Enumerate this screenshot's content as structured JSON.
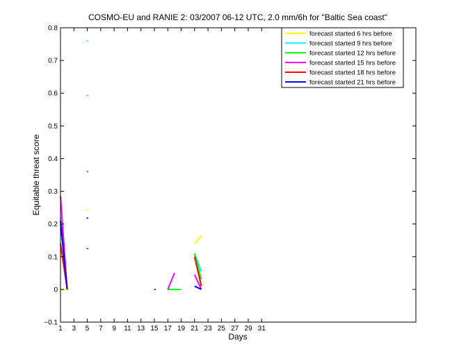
{
  "chart_data": {
    "type": "line",
    "title": "COSMO-EU and RANIE 2: 03/2007 06-12 UTC, 2.0 mm/6h for \"Baltic Sea coast\"",
    "xlabel": "Days",
    "ylabel": "Equitable threat score",
    "xlim": [
      1,
      54
    ],
    "ylim": [
      -0.1,
      0.8
    ],
    "xticks": [
      1,
      3,
      5,
      7,
      9,
      11,
      13,
      15,
      17,
      19,
      21,
      23,
      25,
      27,
      29,
      31
    ],
    "yticks": [
      -0.1,
      0,
      0.1,
      0.2,
      0.3,
      0.4,
      0.5,
      0.6,
      0.7,
      0.8
    ],
    "ytick_labels": [
      "−0.1",
      "0",
      "0.1",
      "0.2",
      "0.3",
      "0.4",
      "0.5",
      "0.6",
      "0.7",
      "0.8"
    ],
    "grid": false,
    "legend_position": "top-right",
    "series": [
      {
        "name": "forecast started 6 hrs before",
        "color": "#ffff00",
        "segments": [
          [
            [
              1,
              0.0
            ],
            [
              2,
              0.0
            ]
          ],
          [
            [
              17,
              0.0
            ],
            [
              18,
              0.0
            ]
          ],
          [
            [
              21,
              0.14
            ],
            [
              22,
              0.165
            ]
          ]
        ],
        "points": [
          [
            5,
            0.243
          ]
        ]
      },
      {
        "name": "forecast started 9 hrs before",
        "color": "#00ffff",
        "segments": [
          [
            [
              1,
              0.22
            ],
            [
              2,
              0.0
            ]
          ],
          [
            [
              17,
              0.0
            ],
            [
              18,
              0.0
            ]
          ],
          [
            [
              21,
              0.11
            ],
            [
              22,
              0.055
            ]
          ]
        ],
        "points": [
          [
            5,
            0.76
          ]
        ]
      },
      {
        "name": "forecast started 12 hrs before",
        "color": "#00ff00",
        "segments": [
          [
            [
              1,
              0.2
            ],
            [
              2,
              0.0
            ]
          ],
          [
            [
              17,
              0.0
            ],
            [
              19,
              0.0
            ]
          ],
          [
            [
              21,
              0.11
            ],
            [
              22,
              0.03
            ]
          ]
        ],
        "points": [
          [
            5,
            0.593
          ]
        ]
      },
      {
        "name": "forecast started 15 hrs before",
        "color": "#ff00ff",
        "segments": [
          [
            [
              1,
              0.285
            ],
            [
              2,
              0.0
            ]
          ],
          [
            [
              17,
              0.0
            ],
            [
              18,
              0.05
            ]
          ],
          [
            [
              21,
              0.045
            ],
            [
              22,
              0.0
            ]
          ]
        ],
        "points": [
          [
            5,
            0.36
          ]
        ]
      },
      {
        "name": "forecast started 18 hrs before",
        "color": "#ff0000",
        "segments": [
          [
            [
              1,
              0.14
            ],
            [
              2,
              0.0
            ]
          ],
          [
            [
              21,
              0.1
            ],
            [
              22,
              0.01
            ]
          ]
        ],
        "points": [
          [
            5,
            0.125
          ]
        ]
      },
      {
        "name": "forecast started 21 hrs before",
        "color": "#0000ff",
        "segments": [
          [
            [
              1,
              0.21
            ],
            [
              2,
              0.0
            ]
          ],
          [
            [
              15,
              0.0
            ],
            [
              15.2,
              0.0
            ]
          ],
          [
            [
              21,
              0.01
            ],
            [
              22,
              0.0
            ]
          ]
        ],
        "points": [
          [
            5,
            0.218
          ]
        ]
      }
    ]
  }
}
